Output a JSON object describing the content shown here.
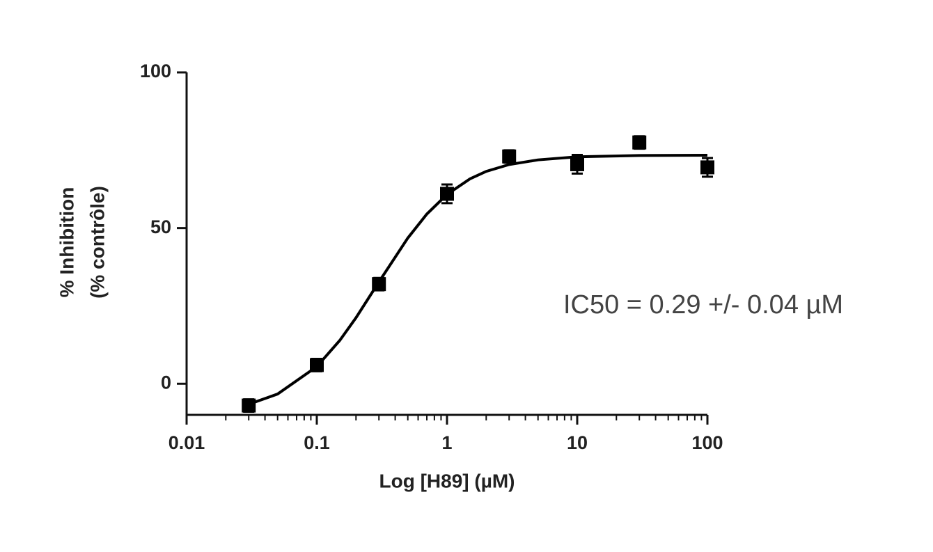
{
  "chart_data": {
    "type": "scatter",
    "xlabel": "Log [H89] (µM)",
    "ylabel": [
      "% Inhibition",
      "(%  contrôle)"
    ],
    "annotation": "IC50 = 0.29 +/- 0.04 µM",
    "xscale": "log",
    "xlim": [
      0.01,
      100
    ],
    "xticks": [
      0.01,
      0.1,
      1,
      10,
      100
    ],
    "x_minor_ticks": [
      0.02,
      0.03,
      0.04,
      0.05,
      0.06,
      0.07,
      0.08,
      0.09,
      0.2,
      0.3,
      0.4,
      0.5,
      0.6,
      0.7,
      0.8,
      0.9,
      2,
      3,
      4,
      5,
      6,
      7,
      8,
      9,
      20,
      30,
      40,
      50,
      60,
      70,
      80,
      90
    ],
    "ylim": [
      -10,
      100
    ],
    "yticks": [
      0,
      50,
      100
    ],
    "series": [
      {
        "color": "#000000",
        "x": [
          0.03,
          0.1,
          0.3,
          1,
          3,
          10,
          30,
          100
        ],
        "values": [
          -7,
          6,
          32,
          61,
          73,
          70.5,
          77.5,
          69.5
        ],
        "errors": [
          2,
          2,
          2,
          3,
          2,
          3,
          2,
          3
        ]
      }
    ],
    "fit": {
      "color": "#000000",
      "x": [
        0.03,
        0.05,
        0.1,
        0.15,
        0.2,
        0.3,
        0.5,
        0.7,
        1,
        1.5,
        2,
        3,
        5,
        10,
        30,
        100
      ],
      "values": [
        -6.6,
        -3.3,
        5.5,
        13.9,
        21.2,
        32.7,
        46.8,
        54.5,
        60.8,
        65.8,
        68.2,
        70.4,
        71.9,
        72.9,
        73.3,
        73.4
      ]
    }
  }
}
